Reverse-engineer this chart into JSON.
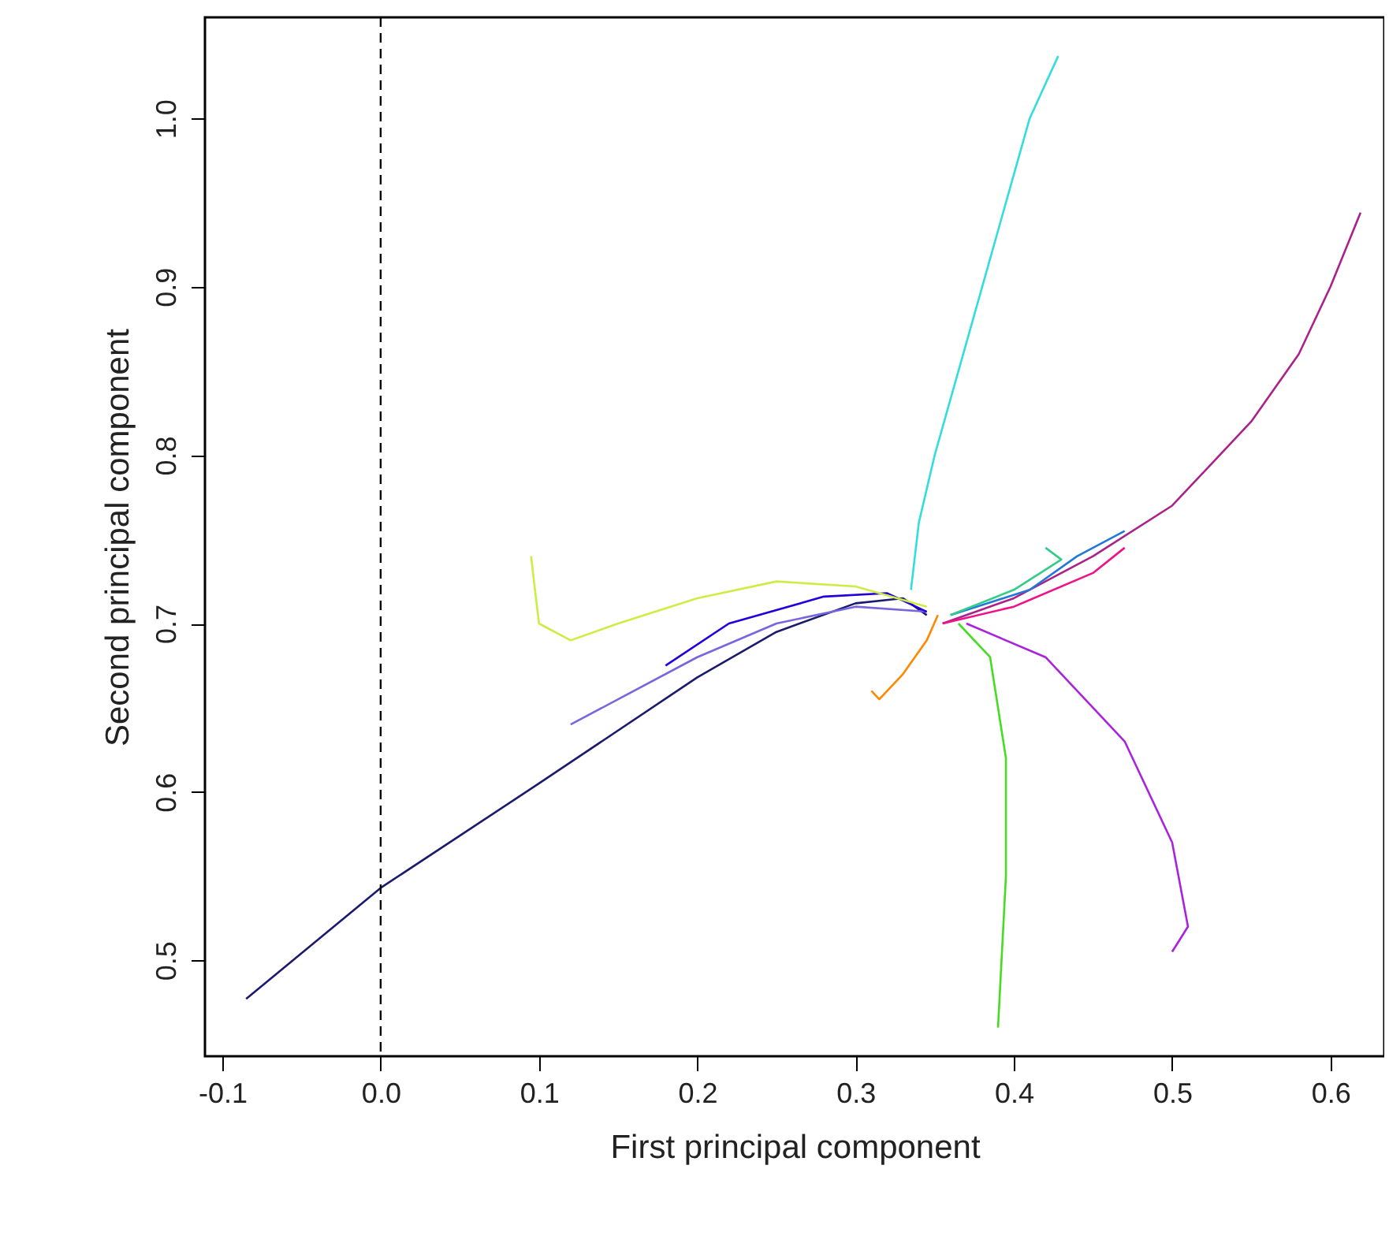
{
  "chart_data": {
    "type": "line",
    "xlabel": "First principal component",
    "ylabel": "Second principal component",
    "xlim": [
      -0.111,
      0.634
    ],
    "ylim": [
      0.443,
      1.06
    ],
    "xticks": [
      -0.1,
      {
        "value": 0,
        "label": "0.0"
      },
      0.1,
      0.2,
      0.3,
      0.4,
      0.5,
      0.6
    ],
    "yticks": [
      0.5,
      0.6,
      0.7,
      0.8,
      0.9,
      {
        "value": 1,
        "label": "1.0"
      }
    ],
    "grid": false,
    "ref_lines": [
      {
        "axis": "x",
        "value": 0,
        "label": null,
        "line_style": "dashed",
        "color": "#000000"
      }
    ],
    "series": [
      {
        "color": "#1a1a6e",
        "x": [
          -0.085,
          0.0,
          0.1,
          0.2,
          0.25,
          0.3,
          0.33,
          0.345
        ],
        "values": [
          0.477,
          0.543,
          0.605,
          0.668,
          0.695,
          0.712,
          0.715,
          0.705
        ]
      },
      {
        "color": "#7766dd",
        "x": [
          0.345,
          0.3,
          0.25,
          0.2,
          0.15,
          0.12
        ],
        "values": [
          0.707,
          0.71,
          0.7,
          0.68,
          0.655,
          0.64
        ]
      },
      {
        "color": "#2200dd",
        "x": [
          0.345,
          0.32,
          0.28,
          0.22,
          0.18
        ],
        "values": [
          0.707,
          0.718,
          0.716,
          0.7,
          0.675
        ]
      },
      {
        "color": "#ccee44",
        "x": [
          0.345,
          0.3,
          0.25,
          0.2,
          0.15,
          0.12,
          0.1,
          0.095
        ],
        "values": [
          0.71,
          0.722,
          0.725,
          0.715,
          0.7,
          0.69,
          0.7,
          0.74
        ]
      },
      {
        "color": "#33dddd",
        "x": [
          0.335,
          0.34,
          0.35,
          0.365,
          0.38,
          0.395,
          0.41,
          0.428
        ],
        "values": [
          0.72,
          0.76,
          0.8,
          0.85,
          0.9,
          0.95,
          1.0,
          1.037
        ]
      },
      {
        "color": "#aa2288",
        "x": [
          0.355,
          0.4,
          0.45,
          0.5,
          0.55,
          0.58,
          0.6,
          0.619
        ],
        "values": [
          0.7,
          0.715,
          0.74,
          0.77,
          0.82,
          0.86,
          0.9,
          0.944
        ]
      },
      {
        "color": "#ee1188",
        "x": [
          0.355,
          0.4,
          0.45,
          0.47
        ],
        "values": [
          0.7,
          0.71,
          0.73,
          0.745
        ]
      },
      {
        "color": "#2277dd",
        "x": [
          0.36,
          0.41,
          0.44,
          0.47
        ],
        "values": [
          0.705,
          0.72,
          0.74,
          0.755
        ]
      },
      {
        "color": "#33cc88",
        "x": [
          0.36,
          0.4,
          0.43,
          0.42
        ],
        "values": [
          0.705,
          0.72,
          0.738,
          0.745
        ]
      },
      {
        "color": "#ff8800",
        "x": [
          0.352,
          0.345,
          0.33,
          0.315,
          0.31
        ],
        "values": [
          0.705,
          0.69,
          0.67,
          0.655,
          0.66
        ]
      },
      {
        "color": "#44dd22",
        "x": [
          0.365,
          0.385,
          0.395,
          0.395,
          0.39
        ],
        "values": [
          0.7,
          0.68,
          0.62,
          0.55,
          0.46
        ]
      },
      {
        "color": "#aa22dd",
        "x": [
          0.37,
          0.42,
          0.47,
          0.5,
          0.51,
          0.5
        ],
        "values": [
          0.7,
          0.68,
          0.63,
          0.57,
          0.52,
          0.505
        ]
      }
    ]
  }
}
